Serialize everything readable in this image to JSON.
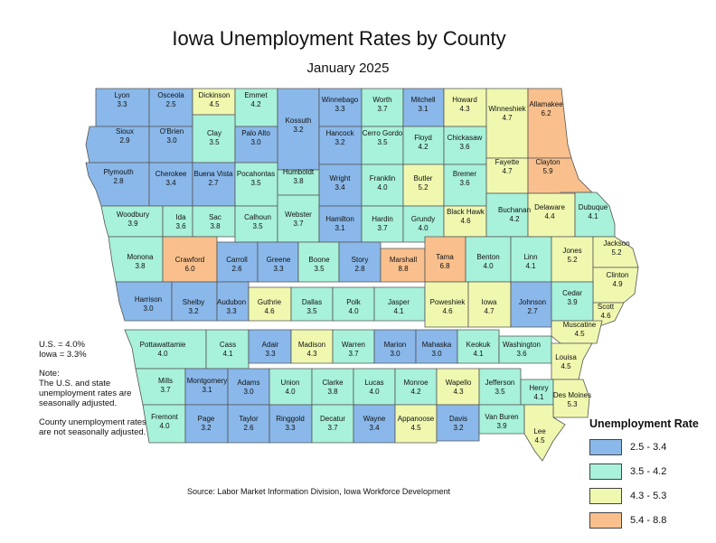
{
  "title": "Iowa Unemployment Rates by County",
  "subtitle": "January 2025",
  "notes": {
    "us_rate": "U.S. = 4.0%",
    "iowa_rate": "Iowa = 3.3%",
    "note1": "Note:\nThe U.S. and state unemployment rates are seasonally adjusted.",
    "note2": "County unemployment rates are not seasonally adjusted."
  },
  "source": "Source: Labor Market Information Division, Iowa Workforce Development",
  "legend": {
    "title": "Unemployment Rate",
    "items": [
      {
        "label": "2.5 - 3.4",
        "color": "#8ab8ea"
      },
      {
        "label": "3.5 - 4.2",
        "color": "#a8f1da"
      },
      {
        "label": "4.3 - 5.3",
        "color": "#f0f8b0"
      },
      {
        "label": "5.4 - 8.8",
        "color": "#f9c08d"
      }
    ]
  },
  "counties": [
    {
      "name": "Lyon",
      "value": "3.3",
      "bin": 0
    },
    {
      "name": "Osceola",
      "value": "2.5",
      "bin": 0
    },
    {
      "name": "Dickinson",
      "value": "4.5",
      "bin": 2
    },
    {
      "name": "Emmet",
      "value": "4.2",
      "bin": 1
    },
    {
      "name": "Kossuth",
      "value": "3.2",
      "bin": 0
    },
    {
      "name": "Winnebago",
      "value": "3.3",
      "bin": 0
    },
    {
      "name": "Worth",
      "value": "3.7",
      "bin": 1
    },
    {
      "name": "Mitchell",
      "value": "3.1",
      "bin": 0
    },
    {
      "name": "Howard",
      "value": "4.3",
      "bin": 2
    },
    {
      "name": "Winneshiek",
      "value": "4.7",
      "bin": 2
    },
    {
      "name": "Allamakee",
      "value": "6.2",
      "bin": 3
    },
    {
      "name": "Sioux",
      "value": "2.9",
      "bin": 0
    },
    {
      "name": "O'Brien",
      "value": "3.0",
      "bin": 0
    },
    {
      "name": "Clay",
      "value": "3.5",
      "bin": 1
    },
    {
      "name": "Palo Alto",
      "value": "3.0",
      "bin": 0
    },
    {
      "name": "Hancock",
      "value": "3.2",
      "bin": 0
    },
    {
      "name": "Cerro Gordo",
      "value": "3.5",
      "bin": 1
    },
    {
      "name": "Floyd",
      "value": "4.2",
      "bin": 1
    },
    {
      "name": "Chickasaw",
      "value": "3.6",
      "bin": 1
    },
    {
      "name": "Fayette",
      "value": "4.7",
      "bin": 2
    },
    {
      "name": "Clayton",
      "value": "5.9",
      "bin": 3
    },
    {
      "name": "Plymouth",
      "value": "2.8",
      "bin": 0
    },
    {
      "name": "Cherokee",
      "value": "3.4",
      "bin": 0
    },
    {
      "name": "Buena Vista",
      "value": "2.7",
      "bin": 0
    },
    {
      "name": "Pocahontas",
      "value": "3.5",
      "bin": 1
    },
    {
      "name": "Humboldt",
      "value": "3.8",
      "bin": 1
    },
    {
      "name": "Wright",
      "value": "3.4",
      "bin": 0
    },
    {
      "name": "Franklin",
      "value": "4.0",
      "bin": 1
    },
    {
      "name": "Butler",
      "value": "5.2",
      "bin": 2
    },
    {
      "name": "Bremer",
      "value": "3.6",
      "bin": 1
    },
    {
      "name": "Woodbury",
      "value": "3.9",
      "bin": 1
    },
    {
      "name": "Ida",
      "value": "3.6",
      "bin": 1
    },
    {
      "name": "Sac",
      "value": "3.8",
      "bin": 1
    },
    {
      "name": "Calhoun",
      "value": "3.5",
      "bin": 1
    },
    {
      "name": "Webster",
      "value": "3.7",
      "bin": 1
    },
    {
      "name": "Hamilton",
      "value": "3.1",
      "bin": 0
    },
    {
      "name": "Hardin",
      "value": "3.7",
      "bin": 1
    },
    {
      "name": "Grundy",
      "value": "4.0",
      "bin": 1
    },
    {
      "name": "Black Hawk",
      "value": "4.6",
      "bin": 2
    },
    {
      "name": "Buchanan",
      "value": "4.2",
      "bin": 1
    },
    {
      "name": "Delaware",
      "value": "4.4",
      "bin": 2
    },
    {
      "name": "Dubuque",
      "value": "4.1",
      "bin": 1
    },
    {
      "name": "Monona",
      "value": "3.8",
      "bin": 1
    },
    {
      "name": "Crawford",
      "value": "6.0",
      "bin": 3
    },
    {
      "name": "Carroll",
      "value": "2.6",
      "bin": 0
    },
    {
      "name": "Greene",
      "value": "3.3",
      "bin": 0
    },
    {
      "name": "Boone",
      "value": "3.5",
      "bin": 1
    },
    {
      "name": "Story",
      "value": "2.8",
      "bin": 0
    },
    {
      "name": "Marshall",
      "value": "8.8",
      "bin": 3
    },
    {
      "name": "Tama",
      "value": "6.8",
      "bin": 3
    },
    {
      "name": "Benton",
      "value": "4.0",
      "bin": 1
    },
    {
      "name": "Linn",
      "value": "4.1",
      "bin": 1
    },
    {
      "name": "Jones",
      "value": "5.2",
      "bin": 2
    },
    {
      "name": "Jackson",
      "value": "5.2",
      "bin": 2
    },
    {
      "name": "Clinton",
      "value": "4.9",
      "bin": 2
    },
    {
      "name": "Harrison",
      "value": "3.0",
      "bin": 0
    },
    {
      "name": "Shelby",
      "value": "3.2",
      "bin": 0
    },
    {
      "name": "Audubon",
      "value": "3.3",
      "bin": 0
    },
    {
      "name": "Guthrie",
      "value": "4.6",
      "bin": 2
    },
    {
      "name": "Dallas",
      "value": "3.5",
      "bin": 1
    },
    {
      "name": "Polk",
      "value": "4.0",
      "bin": 1
    },
    {
      "name": "Jasper",
      "value": "4.1",
      "bin": 1
    },
    {
      "name": "Poweshiek",
      "value": "4.6",
      "bin": 2
    },
    {
      "name": "Iowa",
      "value": "4.7",
      "bin": 2
    },
    {
      "name": "Johnson",
      "value": "2.7",
      "bin": 0
    },
    {
      "name": "Cedar",
      "value": "3.9",
      "bin": 1
    },
    {
      "name": "Scott",
      "value": "4.6",
      "bin": 2
    },
    {
      "name": "Muscatine",
      "value": "4.5",
      "bin": 2
    },
    {
      "name": "Pottawattamie",
      "value": "4.0",
      "bin": 1
    },
    {
      "name": "Cass",
      "value": "4.1",
      "bin": 1
    },
    {
      "name": "Adair",
      "value": "3.3",
      "bin": 0
    },
    {
      "name": "Madison",
      "value": "4.3",
      "bin": 2
    },
    {
      "name": "Warren",
      "value": "3.7",
      "bin": 1
    },
    {
      "name": "Marion",
      "value": "3.0",
      "bin": 0
    },
    {
      "name": "Mahaska",
      "value": "3.0",
      "bin": 0
    },
    {
      "name": "Keokuk",
      "value": "4.1",
      "bin": 1
    },
    {
      "name": "Washington",
      "value": "3.6",
      "bin": 1
    },
    {
      "name": "Louisa",
      "value": "4.5",
      "bin": 2
    },
    {
      "name": "Mills",
      "value": "3.7",
      "bin": 1
    },
    {
      "name": "Montgomery",
      "value": "3.1",
      "bin": 0
    },
    {
      "name": "Adams",
      "value": "3.0",
      "bin": 0
    },
    {
      "name": "Union",
      "value": "4.0",
      "bin": 1
    },
    {
      "name": "Clarke",
      "value": "3.8",
      "bin": 1
    },
    {
      "name": "Lucas",
      "value": "4.0",
      "bin": 1
    },
    {
      "name": "Monroe",
      "value": "4.2",
      "bin": 1
    },
    {
      "name": "Wapello",
      "value": "4.3",
      "bin": 2
    },
    {
      "name": "Jefferson",
      "value": "3.5",
      "bin": 1
    },
    {
      "name": "Henry",
      "value": "4.1",
      "bin": 1
    },
    {
      "name": "Des Moines",
      "value": "5.3",
      "bin": 2
    },
    {
      "name": "Fremont",
      "value": "4.0",
      "bin": 1
    },
    {
      "name": "Page",
      "value": "3.2",
      "bin": 0
    },
    {
      "name": "Taylor",
      "value": "2.6",
      "bin": 0
    },
    {
      "name": "Ringgold",
      "value": "3.3",
      "bin": 0
    },
    {
      "name": "Decatur",
      "value": "3.7",
      "bin": 1
    },
    {
      "name": "Wayne",
      "value": "3.4",
      "bin": 0
    },
    {
      "name": "Appanoose",
      "value": "4.5",
      "bin": 2
    },
    {
      "name": "Davis",
      "value": "3.2",
      "bin": 0
    },
    {
      "name": "Van Buren",
      "value": "3.9",
      "bin": 1
    },
    {
      "name": "Lee",
      "value": "4.5",
      "bin": 2
    }
  ]
}
